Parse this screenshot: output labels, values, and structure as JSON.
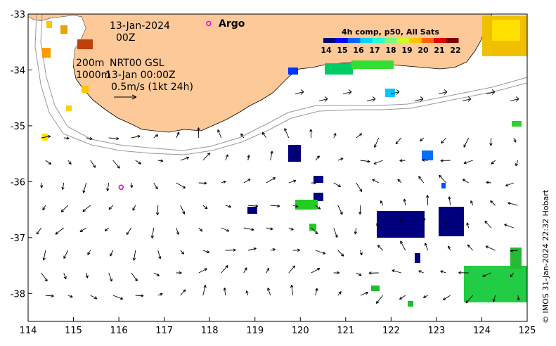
{
  "map": {
    "date_line1": "13-Jan-2024",
    "date_line2": "00Z",
    "isobath_a": "200m",
    "isobath_b": "1000m",
    "model_label": "NRT00 GSL",
    "model_time": "13-Jan 00:00Z",
    "scale_label": "0.5m/s (1kt 24h)",
    "argo_label": "Argo",
    "credit": "© IMOS 31-Jan-2024 22:32 Hobart",
    "x_ticks": [
      "114",
      "115",
      "116",
      "117",
      "118",
      "119",
      "120",
      "121",
      "122",
      "123",
      "124",
      "125"
    ],
    "y_ticks": [
      "-33",
      "-34",
      "-35",
      "-36",
      "-37",
      "-38"
    ],
    "lon_range": [
      114,
      125
    ],
    "lat_range": [
      -33,
      -38.5
    ]
  },
  "colorbar": {
    "title": "4h comp, p50, All Sats",
    "labels": [
      "14",
      "15",
      "16",
      "17",
      "18",
      "19",
      "20",
      "21",
      "22"
    ],
    "colors": [
      "#00007f",
      "#0000ff",
      "#0063ff",
      "#00d4ff",
      "#29ffce",
      "#7dff7a",
      "#ceff29",
      "#ffc400",
      "#ff6200",
      "#e40000",
      "#7f0000"
    ]
  },
  "argo_floats": [
    {
      "lon": 117.98,
      "lat": -33.17
    },
    {
      "lon": 116.05,
      "lat": -36.1
    }
  ]
}
